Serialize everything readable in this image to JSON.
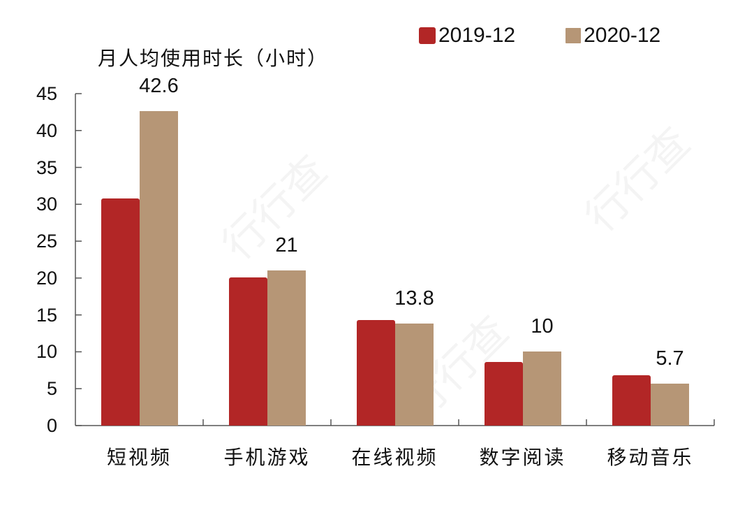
{
  "chart_data": {
    "type": "bar",
    "title": "",
    "ylabel": "月人均使用时长（小时）",
    "xlabel": "",
    "categories": [
      "短视频",
      "手机游戏",
      "在线视频",
      "数字阅读",
      "移动音乐"
    ],
    "series": [
      {
        "name": "2019-12",
        "color": "#b22626",
        "values": [
          30.8,
          20.1,
          14.3,
          8.6,
          6.8
        ]
      },
      {
        "name": "2020-12",
        "color": "#b69676",
        "values": [
          42.6,
          21,
          13.8,
          10,
          5.7
        ]
      }
    ],
    "data_labels": {
      "series": "2020-12",
      "labels": [
        "42.6",
        "21",
        "13.8",
        "10",
        "5.7"
      ]
    },
    "ylim": [
      0,
      45
    ],
    "yticks": [
      0,
      5,
      10,
      15,
      20,
      25,
      30,
      35,
      40,
      45
    ],
    "grid": false,
    "legend_position": "top-right"
  },
  "legend": [
    {
      "label": "2019-12",
      "color": "#b22626"
    },
    {
      "label": "2020-12",
      "color": "#b69676"
    }
  ],
  "ytitle": "月人均使用时长（小时）",
  "watermark": "行行查 HangHangCha"
}
